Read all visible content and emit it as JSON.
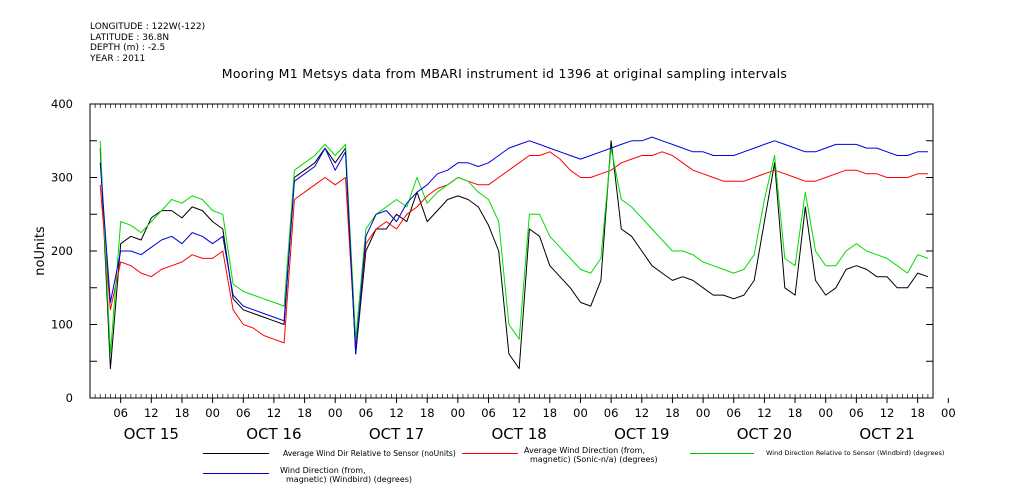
{
  "meta": {
    "longitude": "LONGITUDE : 122W(-122)",
    "latitude": "LATITUDE : 36.8N",
    "depth": "DEPTH (m) : -2.5",
    "year": "YEAR : 2011"
  },
  "chart_data": {
    "type": "line",
    "title": "Mooring M1 Metsys data from MBARI instrument id 1396 at original sampling intervals",
    "ylabel": "noUnits",
    "xlabel": "",
    "ylim": [
      0,
      400
    ],
    "yticks": [
      0,
      100,
      200,
      300,
      400
    ],
    "xlim_hours": [
      0,
      165
    ],
    "hour_ticks": [
      "06",
      "12",
      "18",
      "00",
      "06",
      "12",
      "18",
      "00",
      "06",
      "12",
      "18",
      "00",
      "06",
      "12",
      "18",
      "00",
      "06",
      "12",
      "18",
      "00",
      "06",
      "12",
      "18",
      "00",
      "06",
      "12",
      "18",
      "00"
    ],
    "day_labels": [
      "OCT 15",
      "OCT 16",
      "OCT 17",
      "OCT 18",
      "OCT 19",
      "OCT 20",
      "OCT 21"
    ],
    "grid": false,
    "legend_position": "bottom",
    "series": [
      {
        "name": "Average Wind Dir Relative to Sensor (noUnits)",
        "color": "#000000",
        "x": [
          2,
          4,
          6,
          8,
          10,
          12,
          14,
          16,
          18,
          20,
          22,
          24,
          26,
          28,
          30,
          32,
          34,
          36,
          38,
          40,
          42,
          44,
          46,
          48,
          50,
          52,
          54,
          56,
          58,
          60,
          62,
          64,
          66,
          68,
          70,
          72,
          74,
          76,
          78,
          80,
          82,
          84,
          86,
          88,
          90,
          92,
          94,
          96,
          98,
          100,
          102,
          104,
          106,
          108,
          110,
          112,
          114,
          116,
          118,
          120,
          122,
          124,
          126,
          128,
          130,
          132,
          134,
          136,
          138,
          140,
          142,
          144,
          146,
          148,
          150,
          152,
          154,
          156,
          158,
          160,
          162,
          164
        ],
        "y": [
          340,
          40,
          210,
          220,
          215,
          245,
          255,
          255,
          245,
          260,
          255,
          240,
          230,
          135,
          120,
          115,
          110,
          105,
          100,
          300,
          310,
          320,
          340,
          320,
          340,
          60,
          200,
          230,
          230,
          250,
          240,
          280,
          240,
          255,
          270,
          275,
          270,
          260,
          235,
          200,
          60,
          40,
          230,
          220,
          180,
          165,
          150,
          130,
          125,
          160,
          350,
          230,
          220,
          200,
          180,
          170,
          160,
          165,
          160,
          150,
          140,
          140,
          135,
          140,
          160,
          240,
          320,
          150,
          140,
          260,
          160,
          140,
          150,
          175,
          180,
          175,
          165,
          165,
          150,
          150,
          170,
          165
        ]
      },
      {
        "name": "Average Wind Direction (from, magnetic) (Sonic-n/a) (degrees)",
        "color": "#ff0000",
        "x": [
          2,
          4,
          6,
          8,
          10,
          12,
          14,
          16,
          18,
          20,
          22,
          24,
          26,
          28,
          30,
          32,
          34,
          36,
          38,
          40,
          42,
          44,
          46,
          48,
          50,
          52,
          54,
          56,
          58,
          60,
          62,
          64,
          66,
          68,
          70,
          72,
          74,
          76,
          78,
          80,
          82,
          84,
          86,
          88,
          90,
          92,
          94,
          96,
          98,
          100,
          102,
          104,
          106,
          108,
          110,
          112,
          114,
          116,
          118,
          120,
          122,
          124,
          126,
          128,
          130,
          132,
          134,
          136,
          138,
          140,
          142,
          144,
          146,
          148,
          150,
          152,
          154,
          156,
          158,
          160,
          162,
          164
        ],
        "y": [
          290,
          120,
          185,
          180,
          170,
          165,
          175,
          180,
          185,
          195,
          190,
          190,
          200,
          120,
          100,
          95,
          85,
          80,
          75,
          270,
          280,
          290,
          300,
          290,
          300,
          70,
          210,
          230,
          240,
          230,
          250,
          260,
          275,
          285,
          290,
          300,
          295,
          290,
          290,
          300,
          310,
          320,
          330,
          330,
          335,
          325,
          310,
          300,
          300,
          305,
          310,
          320,
          325,
          330,
          330,
          335,
          330,
          320,
          310,
          305,
          300,
          295,
          295,
          295,
          300,
          305,
          310,
          305,
          300,
          295,
          295,
          300,
          305,
          310,
          310,
          305,
          305,
          300,
          300,
          300,
          305,
          305
        ]
      },
      {
        "name": "Wind Direction Relative to Sensor (Windbird) (degrees)",
        "color": "#00dd00",
        "x": [
          2,
          4,
          6,
          8,
          10,
          12,
          14,
          16,
          18,
          20,
          22,
          24,
          26,
          28,
          30,
          32,
          34,
          36,
          38,
          40,
          42,
          44,
          46,
          48,
          50,
          52,
          54,
          56,
          58,
          60,
          62,
          64,
          66,
          68,
          70,
          72,
          74,
          76,
          78,
          80,
          82,
          84,
          86,
          88,
          90,
          92,
          94,
          96,
          98,
          100,
          102,
          104,
          106,
          108,
          110,
          112,
          114,
          116,
          118,
          120,
          122,
          124,
          126,
          128,
          130,
          132,
          134,
          136,
          138,
          140,
          142,
          144,
          146,
          148,
          150,
          152,
          154,
          156,
          158,
          160,
          162,
          164
        ],
        "y": [
          350,
          60,
          240,
          235,
          225,
          240,
          255,
          270,
          265,
          275,
          270,
          255,
          250,
          155,
          145,
          140,
          135,
          130,
          125,
          310,
          320,
          330,
          345,
          330,
          345,
          80,
          230,
          250,
          260,
          270,
          260,
          300,
          265,
          280,
          290,
          300,
          295,
          280,
          270,
          240,
          100,
          80,
          250,
          250,
          220,
          205,
          190,
          175,
          170,
          190,
          340,
          270,
          260,
          245,
          230,
          215,
          200,
          200,
          195,
          185,
          180,
          175,
          170,
          175,
          195,
          270,
          330,
          190,
          180,
          280,
          200,
          180,
          180,
          200,
          210,
          200,
          195,
          190,
          180,
          170,
          195,
          190
        ]
      },
      {
        "name": "Wind Direction (from, magnetic) (Windbird) (degrees)",
        "color": "#0000dd",
        "x": [
          2,
          4,
          6,
          8,
          10,
          12,
          14,
          16,
          18,
          20,
          22,
          24,
          26,
          28,
          30,
          32,
          34,
          36,
          38,
          40,
          42,
          44,
          46,
          48,
          50,
          52,
          54,
          56,
          58,
          60,
          62,
          64,
          66,
          68,
          70,
          72,
          74,
          76,
          78,
          80,
          82,
          84,
          86,
          88,
          90,
          92,
          94,
          96,
          98,
          100,
          102,
          104,
          106,
          108,
          110,
          112,
          114,
          116,
          118,
          120,
          122,
          124,
          126,
          128,
          130,
          132,
          134,
          136,
          138,
          140,
          142,
          144,
          146,
          148,
          150,
          152,
          154,
          156,
          158,
          160,
          162,
          164
        ],
        "y": [
          320,
          130,
          200,
          200,
          195,
          205,
          215,
          220,
          210,
          225,
          220,
          210,
          220,
          140,
          125,
          120,
          115,
          110,
          105,
          295,
          305,
          315,
          340,
          310,
          335,
          60,
          220,
          250,
          255,
          240,
          265,
          280,
          290,
          305,
          310,
          320,
          320,
          315,
          320,
          330,
          340,
          345,
          350,
          345,
          340,
          335,
          330,
          325,
          330,
          335,
          340,
          345,
          350,
          350,
          355,
          350,
          345,
          340,
          335,
          335,
          330,
          330,
          330,
          335,
          340,
          345,
          350,
          345,
          340,
          335,
          335,
          340,
          345,
          345,
          345,
          340,
          340,
          335,
          330,
          330,
          335,
          335
        ]
      }
    ]
  },
  "legend": [
    {
      "text": "Average Wind Dir Relative to Sensor (noUnits)",
      "color": "#000000"
    },
    {
      "line1": "Average Wind Direction (from,",
      "line2": "magnetic) (Sonic-n/a) (degrees)",
      "color": "#ff0000"
    },
    {
      "text": "Wind Direction Relative to Sensor (Windbird) (degrees)",
      "color": "#00cc00"
    },
    {
      "line1": "Wind Direction (from,",
      "line2": "magnetic) (Windbird) (degrees)",
      "color": "#0000cc"
    }
  ]
}
